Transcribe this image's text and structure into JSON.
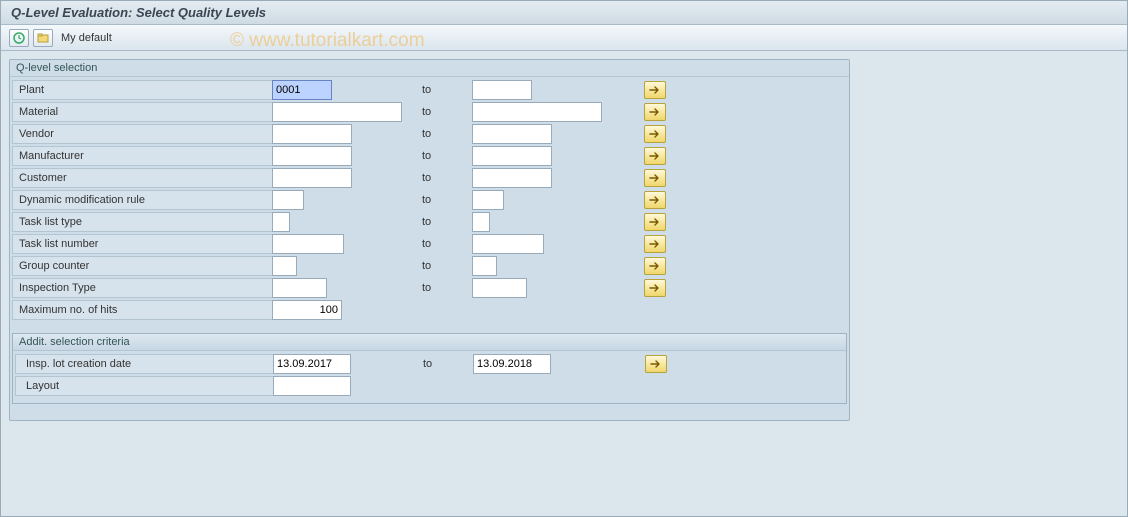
{
  "title": "Q-Level Evaluation: Select Quality Levels",
  "toolbar": {
    "execute_tooltip": "Execute",
    "variant_tooltip": "Get Variant",
    "my_default": "My default"
  },
  "watermark": "© www.tutorialkart.com",
  "group": {
    "title": "Q-level selection",
    "to_label": "to",
    "fields": [
      {
        "name": "plant",
        "label": "Plant",
        "from": "0001",
        "fw": 60,
        "tw": 60,
        "selected": true,
        "multi": true
      },
      {
        "name": "material",
        "label": "Material",
        "from": "",
        "fw": 130,
        "tw": 130,
        "multi": true
      },
      {
        "name": "vendor",
        "label": "Vendor",
        "from": "",
        "fw": 80,
        "tw": 80,
        "multi": true
      },
      {
        "name": "manufacturer",
        "label": "Manufacturer",
        "from": "",
        "fw": 80,
        "tw": 80,
        "multi": true
      },
      {
        "name": "customer",
        "label": "Customer",
        "from": "",
        "fw": 80,
        "tw": 80,
        "multi": true
      },
      {
        "name": "dyn-mod-rule",
        "label": "Dynamic modification rule",
        "from": "",
        "fw": 32,
        "tw": 32,
        "multi": true
      },
      {
        "name": "task-list-type",
        "label": "Task list type",
        "from": "",
        "fw": 18,
        "tw": 18,
        "multi": true
      },
      {
        "name": "task-list-number",
        "label": "Task list number",
        "from": "",
        "fw": 72,
        "tw": 72,
        "multi": true
      },
      {
        "name": "group-counter",
        "label": "Group counter",
        "from": "",
        "fw": 25,
        "tw": 25,
        "multi": true
      },
      {
        "name": "inspection-type",
        "label": "Inspection Type",
        "from": "",
        "fw": 55,
        "tw": 55,
        "multi": true
      },
      {
        "name": "max-hits",
        "label": "Maximum no. of hits",
        "from": "100",
        "fw": 70,
        "align": "right",
        "multi": false,
        "single": true
      }
    ],
    "sub": {
      "title": "Addit. selection criteria",
      "fields": [
        {
          "name": "insp-lot-date",
          "label": "Insp. lot creation date",
          "from": "13.09.2017",
          "to": "13.09.2018",
          "fw": 78,
          "tw": 78,
          "multi": true
        },
        {
          "name": "layout",
          "label": "Layout",
          "from": "",
          "fw": 78,
          "multi": false,
          "single": true
        }
      ]
    }
  },
  "colors": {
    "accent_yellow": "#f0d66a",
    "panel_bg": "#cedde8",
    "body_bg": "#dce6ed"
  }
}
